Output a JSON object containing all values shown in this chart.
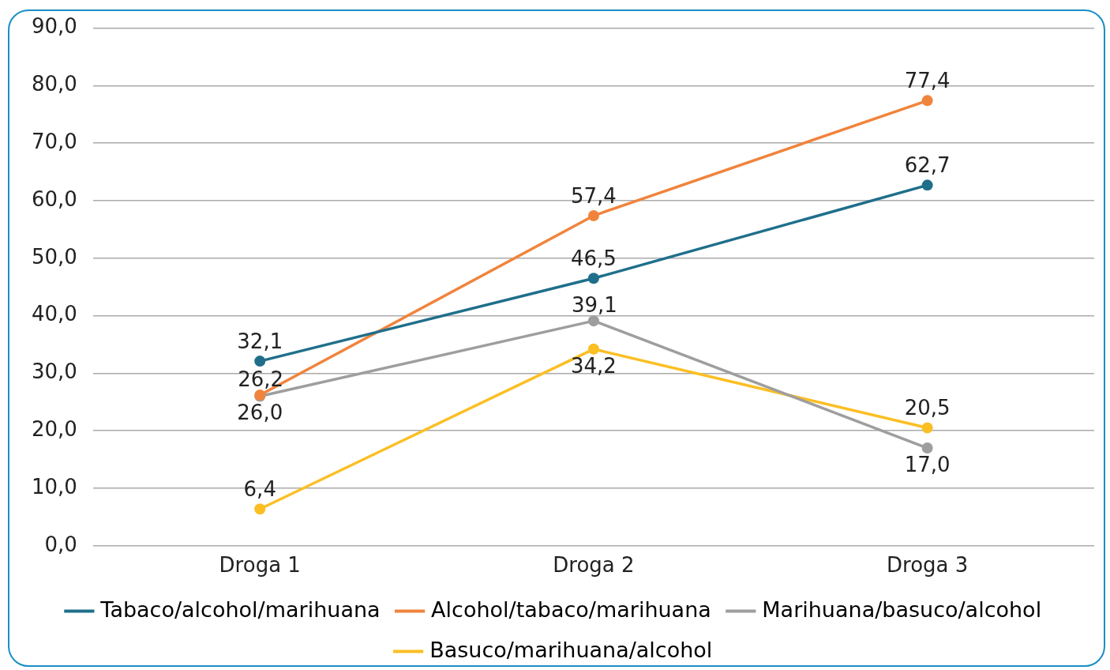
{
  "chart_data": {
    "type": "line",
    "categories": [
      "Droga 1",
      "Droga 2",
      "Droga 3"
    ],
    "series": [
      {
        "name": "Tabaco/alcohol/marihuana",
        "color": "#1f6f8b",
        "values": [
          32.1,
          46.5,
          62.7
        ],
        "value_labels": [
          "32,1",
          "46,5",
          "62,7"
        ]
      },
      {
        "name": "Alcohol/tabaco/marihuana",
        "color": "#f0843c",
        "values": [
          26.2,
          57.4,
          77.4
        ],
        "value_labels": [
          "26,2",
          "57,4",
          "77,4"
        ]
      },
      {
        "name": "Marihuana/basuco/alcohol",
        "color": "#9e9e9e",
        "values": [
          26.0,
          39.1,
          17.0
        ],
        "value_labels": [
          "26,0",
          "39,1",
          "17,0"
        ]
      },
      {
        "name": "Basuco/marihuana/alcohol",
        "color": "#fbbf24",
        "values": [
          6.4,
          34.2,
          20.5
        ],
        "value_labels": [
          "6,4",
          "34,2",
          "20,5"
        ]
      }
    ],
    "ylim": [
      0,
      90
    ],
    "yticks": [
      {
        "value": 0,
        "label": "0,0"
      },
      {
        "value": 10,
        "label": "10,0"
      },
      {
        "value": 20,
        "label": "20,0"
      },
      {
        "value": 30,
        "label": "30,0"
      },
      {
        "value": 40,
        "label": "40,0"
      },
      {
        "value": 50,
        "label": "50,0"
      },
      {
        "value": 60,
        "label": "60,0"
      },
      {
        "value": 70,
        "label": "70,0"
      },
      {
        "value": 80,
        "label": "80,0"
      },
      {
        "value": 90,
        "label": "90,0"
      }
    ],
    "grid": "y",
    "legend": "bottom",
    "marker": "circle",
    "line_style": "solid"
  }
}
